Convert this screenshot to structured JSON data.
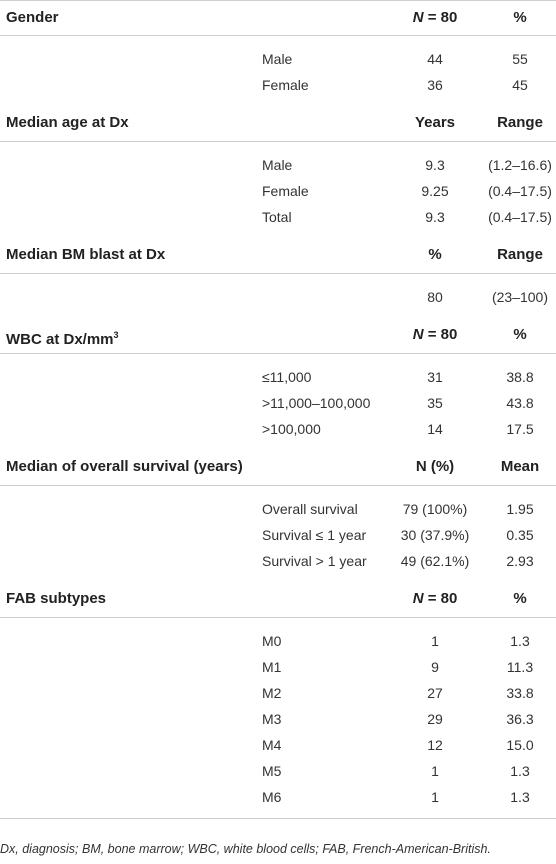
{
  "sections": [
    {
      "title": "Gender",
      "col1": {
        "italic": "N",
        "rest": " = 80"
      },
      "col2": "%",
      "rows": [
        [
          "Male",
          "44",
          "55"
        ],
        [
          "Female",
          "36",
          "45"
        ]
      ]
    },
    {
      "title": "Median age at Dx",
      "col1": "Years",
      "col2": "Range",
      "rows": [
        [
          "Male",
          "9.3",
          "(1.2–16.6)"
        ],
        [
          "Female",
          "9.25",
          "(0.4–17.5)"
        ],
        [
          "Total",
          "9.3",
          "(0.4–17.5)"
        ]
      ]
    },
    {
      "title": "Median BM blast at Dx",
      "col1": "%",
      "col2": "Range",
      "rows": [
        [
          "",
          "80",
          "(23–100)"
        ]
      ]
    },
    {
      "title": {
        "text": "WBC at Dx/mm",
        "sup": "3"
      },
      "col1": {
        "italic": "N",
        "rest": " = 80"
      },
      "col2": "%",
      "rows": [
        [
          "≤11,000",
          "31",
          "38.8"
        ],
        [
          ">11,000–100,000",
          "35",
          "43.8"
        ],
        [
          ">100,000",
          "14",
          "17.5"
        ]
      ]
    },
    {
      "title": "Median of overall survival (years)",
      "col1": "N (%)",
      "col2": "Mean",
      "rows": [
        [
          "Overall survival",
          "79 (100%)",
          "1.95"
        ],
        [
          "Survival ≤ 1 year",
          "30 (37.9%)",
          "0.35"
        ],
        [
          "Survival > 1 year",
          "49 (62.1%)",
          "2.93"
        ]
      ]
    },
    {
      "title": "FAB subtypes",
      "col1": {
        "italic": "N",
        "rest": " = 80"
      },
      "col2": "%",
      "rows": [
        [
          "M0",
          "1",
          "1.3"
        ],
        [
          "M1",
          "9",
          "11.3"
        ],
        [
          "M2",
          "27",
          "33.8"
        ],
        [
          "M3",
          "29",
          "36.3"
        ],
        [
          "M4",
          "12",
          "15.0"
        ],
        [
          "M5",
          "1",
          "1.3"
        ],
        [
          "M6",
          "1",
          "1.3"
        ]
      ]
    }
  ],
  "footnote": "Dx, diagnosis; BM, bone marrow; WBC, white blood cells; FAB, French-American-British."
}
